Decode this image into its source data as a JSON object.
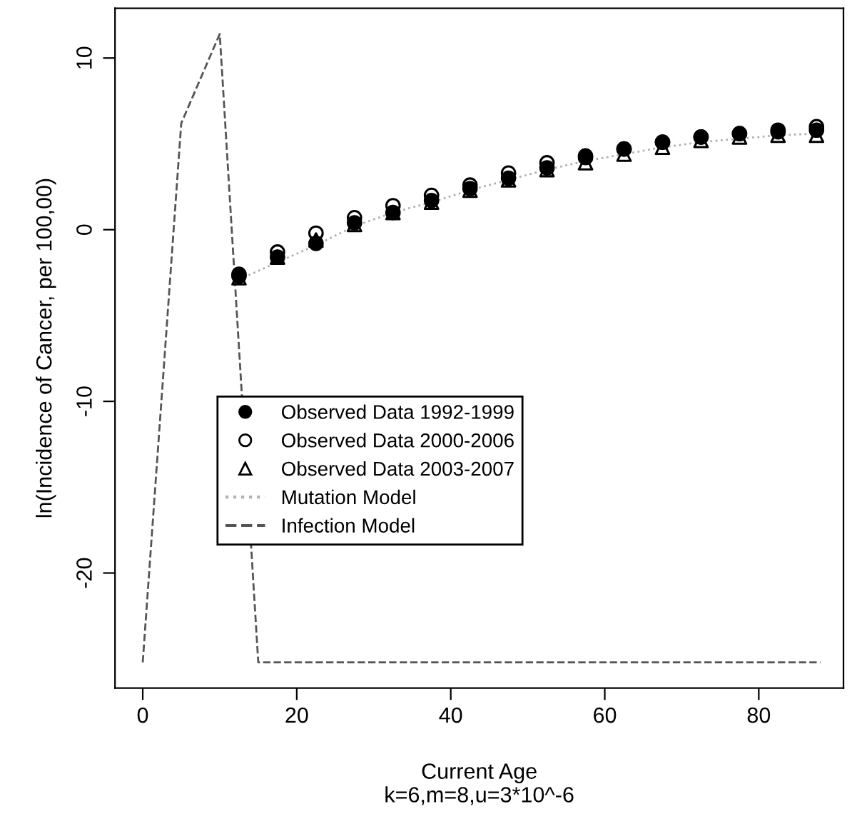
{
  "chart_data": {
    "type": "scatter",
    "xlabel": "Current Age\nk=6,m=8,u=3*10^-6",
    "ylabel": "ln(Incidence of Cancer, per 100,00)",
    "xlim": [
      -3.6,
      91
    ],
    "ylim": [
      -26.7,
      12.9
    ],
    "xticks": [
      0,
      20,
      40,
      60,
      80
    ],
    "yticks": [
      -20,
      -10,
      0,
      10
    ],
    "grid": false,
    "legend": "center",
    "series": [
      {
        "name": "Observed Data 1992-1999",
        "marker": "circle",
        "color": "#000000",
        "x": [
          12.5,
          17.5,
          22.5,
          27.5,
          32.5,
          37.5,
          42.5,
          47.5,
          52.5,
          57.5,
          62.5,
          67.5,
          72.5,
          77.5,
          82.5,
          87.5
        ],
        "values": [
          -2.7,
          -1.6,
          -0.8,
          0.4,
          1.0,
          1.7,
          2.4,
          3.0,
          3.6,
          4.2,
          4.7,
          5.1,
          5.4,
          5.6,
          5.8,
          5.8
        ]
      },
      {
        "name": "Observed Data 2000-2006",
        "marker": "circle",
        "color": "#000000",
        "x": [
          12.5,
          17.5,
          22.5,
          27.5,
          32.5,
          37.5,
          42.5,
          47.5,
          52.5,
          57.5,
          62.5,
          67.5,
          72.5,
          77.5,
          82.5,
          87.5
        ],
        "values": [
          -2.6,
          -1.3,
          -0.2,
          0.7,
          1.4,
          2.0,
          2.6,
          3.3,
          3.9,
          4.3,
          4.7,
          5.1,
          5.4,
          5.6,
          5.7,
          6.0
        ]
      },
      {
        "name": "Observed Data 2003-2007",
        "marker": "triangle",
        "color": "#000000",
        "x": [
          12.5,
          17.5,
          22.5,
          27.5,
          32.5,
          37.5,
          42.5,
          47.5,
          52.5,
          57.5,
          62.5,
          67.5,
          72.5,
          77.5,
          82.5,
          87.5
        ],
        "values": [
          -2.8,
          -1.6,
          -0.6,
          0.3,
          1.0,
          1.6,
          2.3,
          2.9,
          3.5,
          3.9,
          4.4,
          4.8,
          5.2,
          5.4,
          5.5,
          5.5
        ]
      },
      {
        "name": "Mutation Model",
        "type": "line",
        "line_style": "dotted",
        "color": "#b0b0b0",
        "x": [
          12.5,
          17.5,
          22.5,
          27.5,
          32.5,
          37.5,
          42.5,
          47.5,
          52.5,
          57.5,
          62.5,
          67.5,
          72.5,
          77.5,
          82.5,
          87.5
        ],
        "values": [
          -2.9,
          -1.9,
          -0.9,
          0.2,
          1.0,
          1.6,
          2.3,
          2.9,
          3.5,
          4.0,
          4.4,
          4.8,
          5.1,
          5.3,
          5.5,
          5.6
        ]
      },
      {
        "name": "Infection Model",
        "type": "line",
        "line_style": "dashed",
        "color": "#555555",
        "x": [
          0,
          5,
          10,
          15,
          88
        ],
        "values": [
          -25.2,
          6.2,
          11.4,
          -25.2,
          -25.2
        ]
      }
    ]
  }
}
